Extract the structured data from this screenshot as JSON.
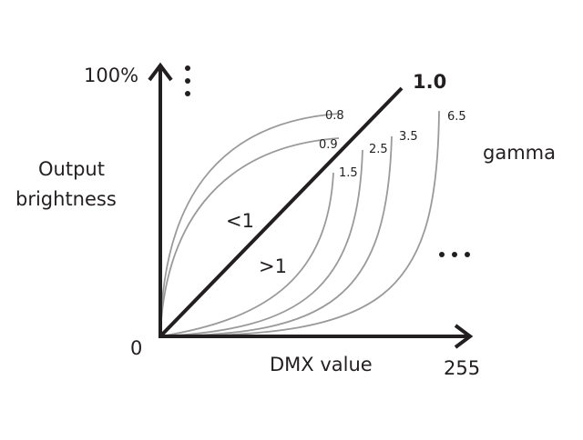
{
  "axes": {
    "y_max": "100%",
    "origin": "0",
    "x_max": "255",
    "x_label": "DMX value",
    "y_label": [
      "Output",
      "brightness"
    ]
  },
  "linear_label": "1.0",
  "curve_labels": [
    "0.8",
    "0.9",
    "1.5",
    "2.5",
    "3.5",
    "6.5"
  ],
  "region_labels": [
    "<1",
    ">1"
  ],
  "gamma_label": "gamma"
}
